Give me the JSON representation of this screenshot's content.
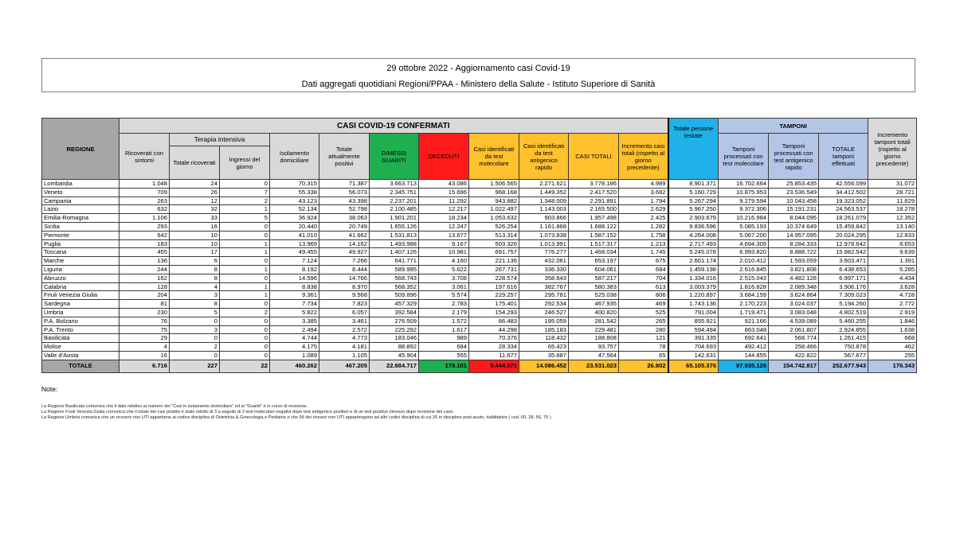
{
  "title": {
    "line1": "29 ottobre 2022 - Aggiornamento casi Covid-19",
    "line2": "Dati aggregati quotidiani Regioni/PPAA - Ministero della Salute - Istituto Superiore di Sanità"
  },
  "colors": {
    "dimessi": "#1faf4f",
    "deceduti": "#ff1a1a",
    "casi": "#ffc12d",
    "persone": "#1fb1e8",
    "tamponi": "#b4c6e7",
    "header": "#d9d9d9"
  },
  "headers": {
    "regione": "REGIONE",
    "casi_group": "CASI COVID-19 CONFERMATI",
    "tamponi_group": "TAMPONI",
    "terapia_group": "Terapia intensiva",
    "cols": [
      "Ricoverati con sintomi",
      "Totale ricoverati",
      "Ingressi del giorno",
      "Isolamento domiciliare",
      "Totale attualmente positivi",
      "DIMESSI GUARITI",
      "DECEDUTI",
      "Casi identificati da test molecolare",
      "Casi identificati da test antigenico rapido",
      "CASI TOTALI",
      "Incremento casi totali (rispetto al giorno precedente)",
      "Totale persone testate",
      "Tamponi processati con test molecolare",
      "Tamponi processati con test antigenico rapido",
      "TOTALE tamponi effettuati",
      "Incremento tamponi totali (rispetto al giorno precedente)"
    ]
  },
  "rows": [
    [
      "Lombardia",
      "1.048",
      "24",
      "0",
      "70.315",
      "71.387",
      "3.663.713",
      "43.086",
      "1.506.565",
      "2.271.621",
      "3.778.186",
      "4.989",
      "8.901.371",
      "16.702.664",
      "25.853.435",
      "42.556.099",
      "31.072"
    ],
    [
      "Veneto",
      "709",
      "26",
      "7",
      "55.338",
      "56.073",
      "2.345.751",
      "15.696",
      "968.168",
      "1.449.352",
      "2.417.520",
      "3.682",
      "5.160.729",
      "10.875.953",
      "23.536.549",
      "34.412.502",
      "28.721"
    ],
    [
      "Campania",
      "263",
      "12",
      "2",
      "43.123",
      "43.398",
      "2.237.201",
      "11.292",
      "943.882",
      "1.348.009",
      "2.291.891",
      "1.794",
      "5.267.294",
      "9.279.594",
      "10.043.458",
      "19.323.052",
      "11.629"
    ],
    [
      "Lazio",
      "632",
      "32",
      "1",
      "52.134",
      "52.798",
      "2.100.485",
      "12.217",
      "1.022.497",
      "1.143.003",
      "2.165.500",
      "2.629",
      "5.967.250",
      "9.372.306",
      "15.191.231",
      "24.563.537",
      "18.278"
    ],
    [
      "Emilia-Romagna",
      "1.106",
      "33",
      "5",
      "36.924",
      "38.063",
      "1.901.201",
      "18.234",
      "1.053.632",
      "903.866",
      "1.957.498",
      "2.425",
      "2.903.679",
      "10.216.984",
      "8.044.095",
      "18.261.079",
      "12.352"
    ],
    [
      "Sicilia",
      "293",
      "16",
      "0",
      "20.440",
      "20.749",
      "1.655.126",
      "12.247",
      "526.254",
      "1.161.868",
      "1.688.122",
      "1.282",
      "9.836.596",
      "5.085.193",
      "10.374.649",
      "15.459.842",
      "13.140"
    ],
    [
      "Piemonte",
      "642",
      "10",
      "0",
      "41.010",
      "41.662",
      "1.531.813",
      "13.677",
      "513.314",
      "1.073.838",
      "1.587.152",
      "1.758",
      "4.264.008",
      "5.067.200",
      "14.957.095",
      "20.024.295",
      "12.833"
    ],
    [
      "Puglia",
      "183",
      "10",
      "1",
      "13.969",
      "14.162",
      "1.493.988",
      "9.167",
      "503.326",
      "1.013.991",
      "1.517.317",
      "1.213",
      "2.717.493",
      "4.694.309",
      "8.284.333",
      "12.978.642",
      "8.653"
    ],
    [
      "Toscana",
      "455",
      "17",
      "1",
      "49.455",
      "49.927",
      "1.407.126",
      "10.981",
      "691.757",
      "776.277",
      "1.468.034",
      "1.745",
      "5.245.078",
      "6.993.820",
      "8.888.722",
      "15.882.542",
      "9.639"
    ],
    [
      "Marche",
      "136",
      "6",
      "0",
      "7.124",
      "7.266",
      "641.771",
      "4.160",
      "221.136",
      "432.061",
      "653.197",
      "675",
      "2.601.174",
      "2.010.412",
      "1.593.059",
      "3.603.471",
      "1.391"
    ],
    [
      "Liguria",
      "244",
      "8",
      "1",
      "8.192",
      "8.444",
      "589.995",
      "5.622",
      "267.731",
      "336.330",
      "604.061",
      "684",
      "1.459.198",
      "2.616.845",
      "3.821.808",
      "6.438.653",
      "5.285"
    ],
    [
      "Abruzzo",
      "162",
      "8",
      "0",
      "14.596",
      "14.766",
      "568.743",
      "3.708",
      "228.574",
      "358.643",
      "587.217",
      "704",
      "1.334.016",
      "2.515.043",
      "4.482.128",
      "6.997.171",
      "4.434"
    ],
    [
      "Calabria",
      "128",
      "4",
      "1",
      "8.838",
      "8.970",
      "568.352",
      "3.061",
      "197.616",
      "382.767",
      "580.383",
      "613",
      "3.003.379",
      "1.816.828",
      "2.089.348",
      "3.906.176",
      "3.628"
    ],
    [
      "Friuli Venezia Giulia",
      "204",
      "3",
      "1",
      "9.361",
      "9.568",
      "509.896",
      "5.574",
      "229.257",
      "295.781",
      "525.038",
      "806",
      "1.220.897",
      "3.684.159",
      "3.624.864",
      "7.309.023",
      "4.728"
    ],
    [
      "Sardegna",
      "81",
      "8",
      "0",
      "7.734",
      "7.823",
      "457.329",
      "2.783",
      "175.401",
      "292.534",
      "467.935",
      "469",
      "1.743.136",
      "2.170.223",
      "3.024.037",
      "5.194.260",
      "2.772"
    ],
    [
      "Umbria",
      "230",
      "5",
      "2",
      "5.822",
      "6.057",
      "392.584",
      "2.179",
      "154.293",
      "246.527",
      "400.820",
      "525",
      "791.004",
      "1.719.471",
      "3.083.048",
      "4.802.519",
      "2.919"
    ],
    [
      "P.A. Bolzano",
      "76",
      "0",
      "0",
      "3.385",
      "3.461",
      "276.509",
      "1.572",
      "86.483",
      "195.059",
      "281.542",
      "265",
      "855.921",
      "921.166",
      "4.539.089",
      "5.460.255",
      "1.846"
    ],
    [
      "P.A. Trento",
      "75",
      "3",
      "0",
      "2.494",
      "2.572",
      "225.292",
      "1.617",
      "44.298",
      "185.183",
      "229.481",
      "280",
      "594.494",
      "863.048",
      "2.061.807",
      "2.924.855",
      "1.638"
    ],
    [
      "Basilicata",
      "29",
      "0",
      "0",
      "4.744",
      "4.773",
      "183.046",
      "989",
      "70.376",
      "118.432",
      "188.808",
      "121",
      "391.335",
      "692.641",
      "568.774",
      "1.261.415",
      "668"
    ],
    [
      "Molise",
      "4",
      "2",
      "0",
      "4.175",
      "4.181",
      "88.892",
      "684",
      "28.334",
      "65.423",
      "93.757",
      "78",
      "704.693",
      "492.412",
      "258.466",
      "750.878",
      "462"
    ],
    [
      "Valle d'Aosta",
      "16",
      "0",
      "0",
      "1.089",
      "1.105",
      "45.904",
      "555",
      "11.677",
      "35.887",
      "47.564",
      "65",
      "142.631",
      "144.855",
      "422.822",
      "567.677",
      "255"
    ]
  ],
  "total": [
    "TOTALE",
    "6.716",
    "227",
    "22",
    "460.262",
    "467.205",
    "22.884.717",
    "179.101",
    "9.444.571",
    "14.086.452",
    "23.531.023",
    "26.802",
    "65.105.376",
    "97.935.126",
    "154.742.817",
    "252.677.943",
    "176.343"
  ],
  "notes": {
    "title": "Note:",
    "lines": [
      "La Regione Basilicata comunica che il dato relativo al numero dei \"Casi in isolamento domiciliare\" ed ai \"Guariti\" è in corso di revisione.",
      "La Regione Friuli Venezia Giulia comunica che il totale dei casi positivi è stato ridotto di 3 a seguito di 2 test molecolari negativi dopo test antigenico positivo e di un test positivo rimosso dopo revisione del caso.",
      "La Regione Umbria comunica che un ricovero non UTI appartiene ai codice disciplina di Ostetricia & Ginecologia e Pediatria e che 99 dei ricoveri non UTI appartengono ad altri codici disciplina di cui 26 in discipline post-acuto, riabilitative ( cod. 60, 28, 56, 75 )."
    ]
  }
}
